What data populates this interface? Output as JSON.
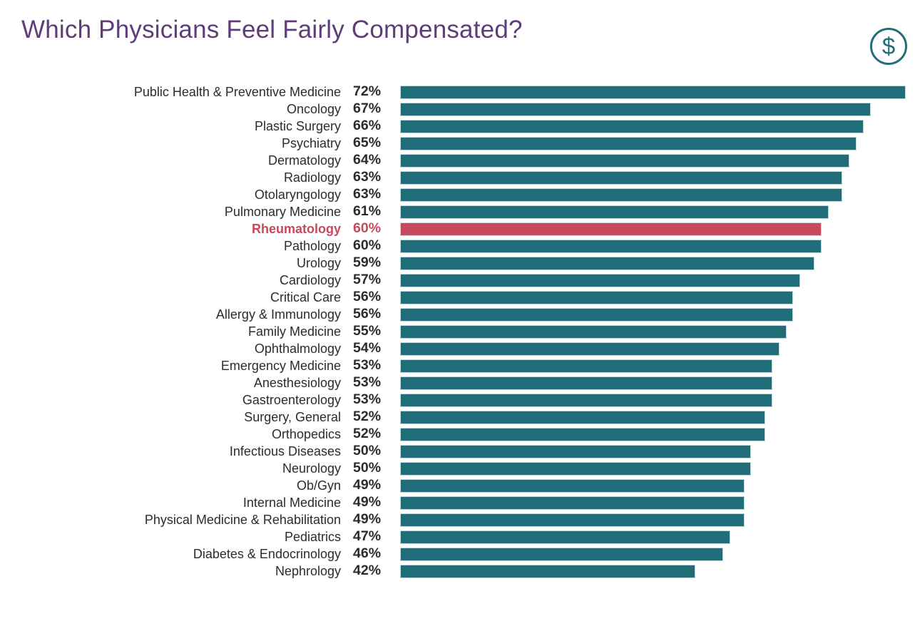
{
  "header": {
    "title": "Which Physicians Feel Fairly Compensated?"
  },
  "icons": {
    "dollar": "$"
  },
  "colors": {
    "title": "#5e3d78",
    "bar": "#216e7b",
    "highlight": "#c6495e",
    "text": "#2d2b2c",
    "background": "#ffffff"
  },
  "chart_data": {
    "type": "bar",
    "orientation": "horizontal",
    "title": "Which Physicians Feel Fairly Compensated?",
    "value_suffix": "%",
    "axis_max": 72,
    "grid": false,
    "legend": false,
    "bar_color": "#216e7b",
    "highlight_category": "Rheumatology",
    "highlight_color": "#c6495e",
    "categories": [
      "Public Health & Preventive Medicine",
      "Oncology",
      "Plastic Surgery",
      "Psychiatry",
      "Dermatology",
      "Radiology",
      "Otolaryngology",
      "Pulmonary Medicine",
      "Rheumatology",
      "Pathology",
      "Urology",
      "Cardiology",
      "Critical Care",
      "Allergy & Immunology",
      "Family Medicine",
      "Ophthalmology",
      "Emergency Medicine",
      "Anesthesiology",
      "Gastroenterology",
      "Surgery, General",
      "Orthopedics",
      "Infectious Diseases",
      "Neurology",
      "Ob/Gyn",
      "Internal Medicine",
      "Physical Medicine & Rehabilitation",
      "Pediatrics",
      "Diabetes & Endocrinology",
      "Nephrology"
    ],
    "values": [
      72,
      67,
      66,
      65,
      64,
      63,
      63,
      61,
      60,
      60,
      59,
      57,
      56,
      56,
      55,
      54,
      53,
      53,
      53,
      52,
      52,
      50,
      50,
      49,
      49,
      49,
      47,
      46,
      42
    ]
  }
}
